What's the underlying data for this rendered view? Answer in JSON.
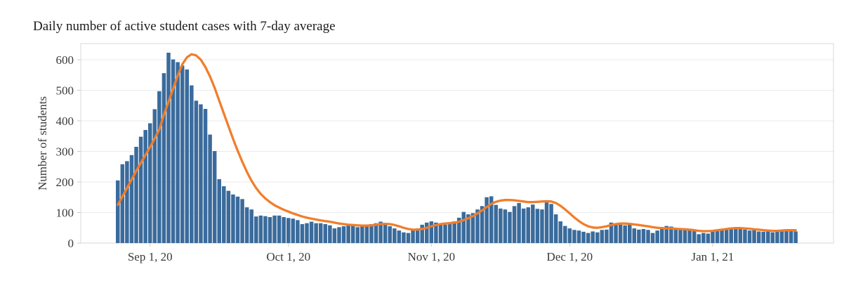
{
  "page": {
    "title": "Daily number of active student cases with 7-day average"
  },
  "chart_data": {
    "type": "bar",
    "subtype": "bar-with-line-overlay",
    "title": "Daily number of active student cases with 7-day average",
    "xlabel": "",
    "ylabel": "Number of students",
    "ylim": [
      0,
      650
    ],
    "grid": "horizontal-only",
    "legend_position": "none",
    "start_date": "2020-08-25",
    "end_date": "2021-01-19",
    "y_ticks": [
      0,
      100,
      200,
      300,
      400,
      500,
      600
    ],
    "x_ticks": [
      {
        "label": "Sep 1, 20",
        "day_index": 7
      },
      {
        "label": "Oct 1, 20",
        "day_index": 37
      },
      {
        "label": "Nov 1, 20",
        "day_index": 68
      },
      {
        "label": "Dec 1, 20",
        "day_index": 98
      },
      {
        "label": "Jan 1, 21",
        "day_index": 129
      }
    ],
    "colors": {
      "bar": "#3A6B9C",
      "line": "#F07E2C",
      "gridline": "#EBEBEB",
      "plot_border": "#D9D9D9",
      "tick_mark": "#CCCCCC",
      "text": "#3a3a3a"
    },
    "series": [
      {
        "name": "Daily active student cases",
        "type": "bar",
        "color": "#3A6B9C",
        "values": [
          205,
          258,
          268,
          288,
          315,
          348,
          370,
          392,
          438,
          497,
          556,
          623,
          601,
          592,
          581,
          568,
          516,
          466,
          454,
          439,
          355,
          301,
          209,
          186,
          171,
          159,
          152,
          144,
          117,
          110,
          87,
          90,
          88,
          85,
          90,
          90,
          85,
          82,
          80,
          75,
          62,
          65,
          70,
          65,
          65,
          62,
          58,
          48,
          52,
          55,
          60,
          60,
          52,
          55,
          60,
          62,
          65,
          70,
          62,
          55,
          48,
          41,
          35,
          33,
          43,
          48,
          60,
          67,
          71,
          67,
          64,
          60,
          64,
          71,
          83,
          102,
          94,
          98,
          110,
          121,
          150,
          153,
          125,
          113,
          110,
          102,
          121,
          131,
          113,
          117,
          126,
          112,
          110,
          133,
          128,
          94,
          71,
          56,
          48,
          43,
          41,
          37,
          33,
          38,
          35,
          43,
          44,
          67,
          64,
          60,
          58,
          61,
          48,
          44,
          46,
          43,
          33,
          41,
          51,
          56,
          54,
          46,
          44,
          43,
          44,
          41,
          29,
          33,
          31,
          41,
          44,
          46,
          48,
          51,
          52,
          51,
          44,
          41,
          43,
          38,
          37,
          38,
          35,
          37,
          43,
          44,
          43,
          38
        ]
      },
      {
        "name": "7-day average",
        "type": "line",
        "color": "#F07E2C",
        "values": [
          125,
          152,
          180,
          208,
          236,
          262,
          288,
          314,
          342,
          372,
          420,
          462,
          505,
          548,
          585,
          608,
          618,
          614,
          600,
          576,
          545,
          508,
          466,
          424,
          382,
          341,
          302,
          266,
          233,
          204,
          180,
          161,
          146,
          134,
          124,
          116,
          109,
          103,
          97,
          92,
          87,
          83,
          80,
          77,
          74,
          72,
          70,
          67,
          64,
          62,
          60,
          59,
          58,
          57,
          57,
          58,
          60,
          62,
          63,
          62,
          59,
          55,
          50,
          46,
          44,
          44,
          46,
          50,
          55,
          59,
          62,
          64,
          65,
          67,
          70,
          75,
          81,
          88,
          97,
          107,
          118,
          128,
          135,
          139,
          141,
          141,
          140,
          138,
          136,
          134,
          134,
          135,
          136,
          137,
          136,
          131,
          122,
          110,
          97,
          84,
          72,
          62,
          55,
          51,
          50,
          52,
          55,
          59,
          62,
          64,
          64,
          63,
          61,
          59,
          57,
          55,
          52,
          50,
          49,
          48,
          48,
          47,
          46,
          45,
          44,
          42,
          40,
          39,
          39,
          40,
          42,
          44,
          46,
          48,
          49,
          49,
          48,
          47,
          45,
          44,
          42,
          41,
          40,
          40,
          41,
          42,
          42,
          42
        ]
      }
    ]
  }
}
